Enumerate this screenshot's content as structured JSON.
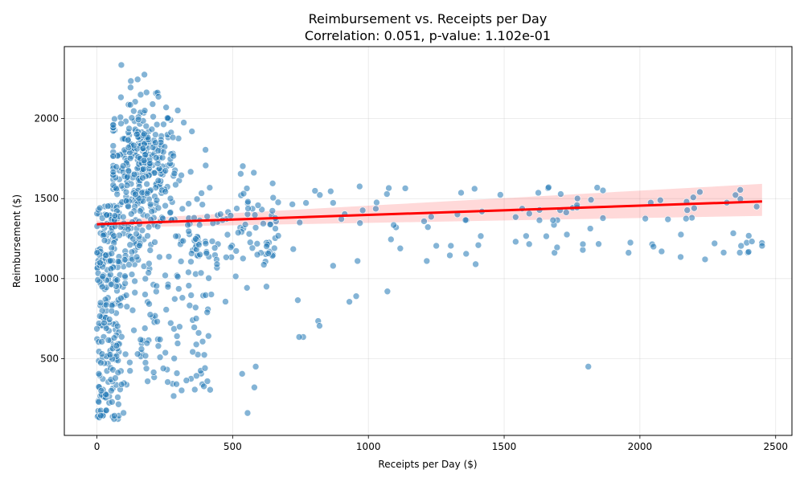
{
  "chart_data": {
    "type": "scatter",
    "title": "Reimbursement vs. Receipts per Day",
    "subtitle": "Correlation: 0.051, p-value: 1.102e-01",
    "xlabel": "Receipts per Day ($)",
    "ylabel": "Reimbursement ($)",
    "xlim": [
      -120,
      2560
    ],
    "ylim": [
      20,
      2450
    ],
    "xticks": [
      0,
      500,
      1000,
      1500,
      2000,
      2500
    ],
    "yticks": [
      500,
      1000,
      1500,
      2000
    ],
    "grid": true,
    "point_color": "#1f77b4",
    "regression": {
      "color": "#ff0000",
      "x": [
        0,
        2450
      ],
      "y": [
        1340,
        1482
      ],
      "ci_lower": [
        1318,
        1392
      ],
      "ci_upper": [
        1362,
        1592
      ]
    }
  }
}
